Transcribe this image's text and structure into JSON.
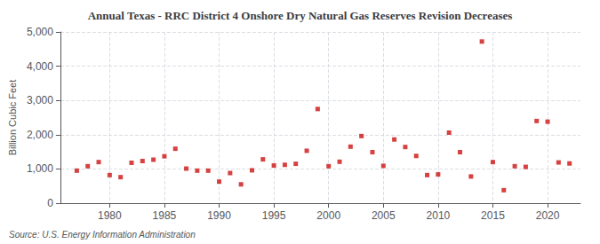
{
  "chart_data": {
    "type": "scatter",
    "title": "Annual Texas - RRC District 4 Onshore Dry Natural Gas Reserves Revision Decreases",
    "ylabel": "Billion Cubic Feet",
    "source": "Source: U.S. Energy Information Administration",
    "x": [
      1977,
      1978,
      1979,
      1980,
      1981,
      1982,
      1983,
      1984,
      1985,
      1986,
      1987,
      1988,
      1989,
      1990,
      1991,
      1992,
      1993,
      1994,
      1995,
      1996,
      1997,
      1998,
      1999,
      2000,
      2001,
      2002,
      2003,
      2004,
      2005,
      2006,
      2007,
      2008,
      2009,
      2010,
      2011,
      2012,
      2013,
      2014,
      2015,
      2016,
      2017,
      2018,
      2019,
      2020,
      2021,
      2022
    ],
    "values": [
      950,
      1080,
      1200,
      820,
      760,
      1180,
      1230,
      1270,
      1370,
      1590,
      1010,
      950,
      950,
      630,
      880,
      550,
      960,
      1280,
      1100,
      1120,
      1150,
      1530,
      2750,
      1080,
      1210,
      1650,
      1960,
      1490,
      1090,
      1860,
      1640,
      1380,
      820,
      840,
      2060,
      1490,
      780,
      4720,
      1200,
      380,
      1080,
      1060,
      2400,
      2380,
      1190,
      1160
    ],
    "color": "#cc1111",
    "marker": "square",
    "xlim": [
      1975.5,
      2023
    ],
    "xticks": [
      1980,
      1985,
      1990,
      1995,
      2000,
      2005,
      2010,
      2015,
      2020
    ],
    "ylim": [
      0,
      5000
    ],
    "yticks": [
      0,
      {
        "value": 1000,
        "label": "1,000"
      },
      {
        "value": 2000,
        "label": "2,000"
      },
      {
        "value": 3000,
        "label": "3,000"
      },
      {
        "value": 4000,
        "label": "4,000"
      },
      {
        "value": 5000,
        "label": "5,000"
      }
    ],
    "grid": true
  }
}
